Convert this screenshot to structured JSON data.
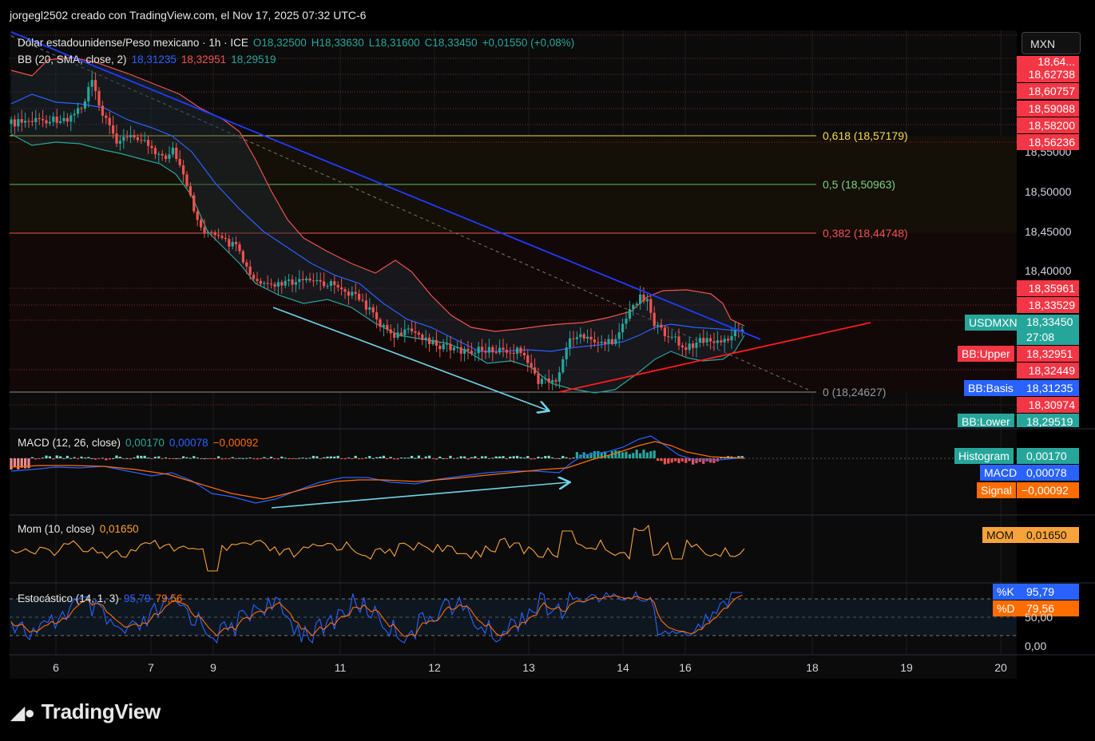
{
  "header": {
    "author_line": "jorgegl2502 creado con TradingView.com, el Nov 17, 2025 07:32 UTC-6"
  },
  "symbol_legend": {
    "title": "Dólar estadounidense/Peso mexicano · 1h · ICE",
    "open": "O18,32500",
    "high": "H18,33630",
    "low": "L18,31600",
    "close": "C18,33450",
    "change": "+0,01550 (+0,08%)"
  },
  "bb_legend": {
    "label": "BB (20, SMA, close, 2)",
    "basis": "18,31235",
    "upper": "18,32951",
    "lower": "18,29519"
  },
  "macd_legend": {
    "label": "MACD (12, 26, close)",
    "hist": "0,00170",
    "macd": "0,00078",
    "signal": "−0,00092"
  },
  "mom_legend": {
    "label": "Mom (10, close)",
    "value": "0,01650"
  },
  "stoch_legend": {
    "label": "Estocástico (14, 1, 3)",
    "k": "95,79",
    "d": "79,56"
  },
  "fib_levels": [
    {
      "label": "0,618 (18,57179)",
      "color": "#f5d94a"
    },
    {
      "label": "0,5 (18,50963)",
      "color": "#7fd17f"
    },
    {
      "label": "0,382 (18,44748)",
      "color": "#ef5350"
    },
    {
      "label": "0 (18,24627)",
      "color": "#9598a1"
    }
  ],
  "currency_button": "MXN",
  "price_axis": {
    "ticks": [
      "18,55000",
      "18,50000",
      "18,45000",
      "18,40000"
    ],
    "red_labels": [
      "18,64...",
      "18,62738",
      "18,60757",
      "18,59088",
      "18,58200",
      "18,56236",
      "18,35961",
      "18,33529",
      "18,32449",
      "18,30974"
    ],
    "symbol_tag": {
      "name": "USDMXN",
      "price": "18,33450",
      "countdown": "27:08"
    },
    "bb_upper_tag": {
      "name": "BB:Upper",
      "value": "18,32951"
    },
    "bb_basis_tag": {
      "name": "BB:Basis",
      "value": "18,31235"
    },
    "bb_lower_tag": {
      "name": "BB:Lower",
      "value": "18,29519"
    },
    "macd_tags": [
      {
        "name": "Histogram",
        "value": "0,00170",
        "color": "#26a69a"
      },
      {
        "name": "MACD",
        "value": "0,00078",
        "color": "#2962ff"
      },
      {
        "name": "Signal",
        "value": "−0,00092",
        "color": "#ff6d00"
      }
    ],
    "mom_tag": {
      "name": "MOM",
      "value": "0,01650"
    },
    "stoch_tags": [
      {
        "name": "%K",
        "value": "95,79",
        "color": "#2962ff"
      },
      {
        "name": "%D",
        "value": "79,56",
        "color": "#ff6d00"
      }
    ],
    "stoch_axis": [
      "50,00",
      "0,00"
    ]
  },
  "time_axis": [
    "6",
    "7",
    "9",
    "11",
    "12",
    "13",
    "14",
    "16",
    "18",
    "19",
    "20"
  ],
  "branding": {
    "logo_text": "TradingView"
  },
  "colors": {
    "up": "#26a69a",
    "down": "#ef5350",
    "bb_basis": "#2962ff",
    "bb_band": "#ef5350",
    "bb_lower": "#26a69a",
    "trend_blue": "#1f3cff",
    "trend_red": "#ff1a1a",
    "arrow": "#6fd3e8",
    "macd": "#2962ff",
    "signal": "#ff6d00",
    "mom": "#f7a23b"
  }
}
